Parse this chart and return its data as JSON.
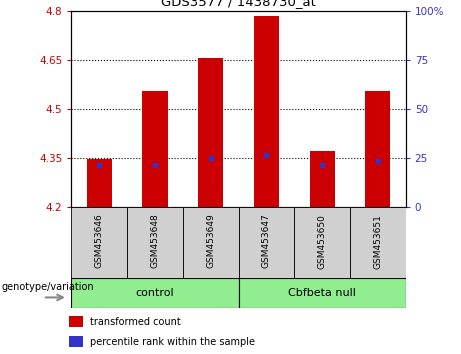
{
  "title": "GDS3577 / 1438730_at",
  "samples": [
    "GSM453646",
    "GSM453648",
    "GSM453649",
    "GSM453647",
    "GSM453650",
    "GSM453651"
  ],
  "group_labels": [
    "control",
    "Cbfbeta null"
  ],
  "bar_values": [
    4.348,
    4.555,
    4.655,
    4.785,
    4.37,
    4.555
  ],
  "percentile_values": [
    4.33,
    4.328,
    4.35,
    4.358,
    4.328,
    4.342
  ],
  "ymin": 4.2,
  "ymax": 4.8,
  "yticks": [
    4.2,
    4.35,
    4.5,
    4.65,
    4.8
  ],
  "ytick_labels": [
    "4.2",
    "4.35",
    "4.5",
    "4.65",
    "4.8"
  ],
  "y2ticks": [
    0,
    25,
    50,
    75,
    100
  ],
  "y2tick_labels": [
    "0",
    "25",
    "50",
    "75",
    "100%"
  ],
  "dotted_lines": [
    4.35,
    4.5,
    4.65
  ],
  "bar_color": "#CC0000",
  "percentile_color": "#3333CC",
  "bar_width": 0.45,
  "plot_bg_color": "#ffffff",
  "tick_label_color_left": "#CC0000",
  "tick_label_color_right": "#3333CC",
  "sample_bg_color": "#d0d0d0",
  "group_bg_color": "#90EE90",
  "legend_items": [
    "transformed count",
    "percentile rank within the sample"
  ],
  "genotype_label": "genotype/variation"
}
